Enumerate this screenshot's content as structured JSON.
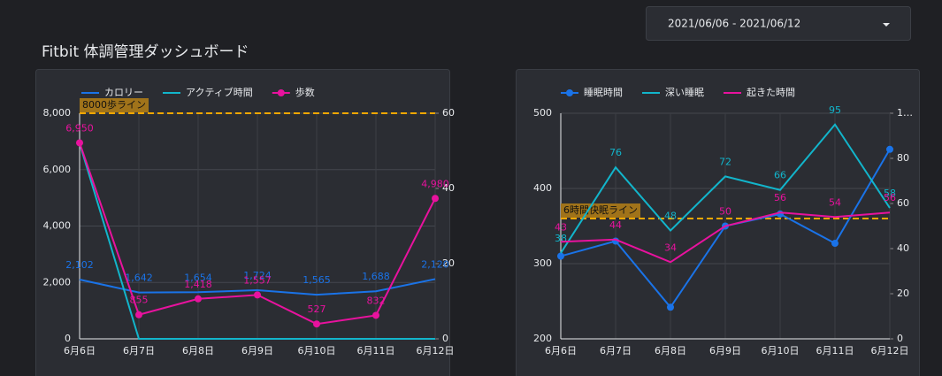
{
  "header": {
    "title": "Fitbit 体調管理ダッシュボード",
    "date_range": "2021/06/06 - 2021/06/12"
  },
  "chart_data": [
    {
      "type": "line",
      "categories": [
        "6月6日",
        "6月7日",
        "6月8日",
        "6月9日",
        "6月10日",
        "6月11日",
        "6月12日"
      ],
      "series": [
        {
          "name": "カロリー",
          "color": "#1a73e8",
          "values": [
            2102,
            1642,
            1654,
            1724,
            1565,
            1688,
            2120
          ],
          "value_labels": [
            "2,102",
            "1,642",
            "1,654",
            "1,724",
            "1,565",
            "1,688",
            "2,120"
          ],
          "show_labels": true
        },
        {
          "name": "アクティブ時間",
          "color": "#12b5cb",
          "axis": "y2",
          "values": [
            52,
            0,
            0,
            0,
            0,
            0,
            0
          ],
          "show_labels": false
        },
        {
          "name": "歩数",
          "color": "#e8129e",
          "marker": true,
          "values": [
            6950,
            855,
            1418,
            1557,
            527,
            832,
            4980
          ],
          "value_labels": [
            "6,950",
            "855",
            "1,418",
            "1,557",
            "527",
            "832",
            "4,980"
          ],
          "show_labels": true
        }
      ],
      "ylim": [
        0,
        8000
      ],
      "yticks": [
        0,
        {
          "value": 2000,
          "label": "2,000"
        },
        {
          "value": 4000,
          "label": "4,000"
        },
        {
          "value": 6000,
          "label": "6,000"
        },
        {
          "value": 8000,
          "label": "8,000"
        }
      ],
      "y2lim": [
        0,
        60
      ],
      "y2ticks": [
        0,
        20,
        40,
        60
      ],
      "reference_line": {
        "value": 8000,
        "label": "8000歩ライン",
        "color": "#f2a700"
      },
      "grid": true,
      "legend": "top"
    },
    {
      "type": "line",
      "categories": [
        "6月6日",
        "6月7日",
        "6月8日",
        "6月9日",
        "6月10日",
        "6月11日",
        "6月12日"
      ],
      "series": [
        {
          "name": "睡眠時間",
          "color": "#1a73e8",
          "marker": true,
          "values": [
            310,
            330,
            242,
            350,
            366,
            327,
            452
          ],
          "show_labels": false
        },
        {
          "name": "深い睡眠",
          "color": "#12b5cb",
          "axis": "y2",
          "values": [
            38,
            76,
            48,
            72,
            66,
            95,
            58
          ],
          "show_labels": true
        },
        {
          "name": "起きた時間",
          "color": "#e8129e",
          "axis": "y2",
          "values": [
            43,
            44,
            34,
            50,
            56,
            54,
            56
          ],
          "show_labels": true
        }
      ],
      "ylim": [
        200,
        500
      ],
      "yticks": [
        200,
        300,
        400,
        500
      ],
      "y2lim": [
        0,
        100
      ],
      "y2ticks": [
        0,
        20,
        40,
        60,
        80,
        {
          "value": 100,
          "label": "1…"
        }
      ],
      "reference_line": {
        "value": 360,
        "label": "6時間快眠ライン",
        "color": "#f2a700"
      },
      "grid": true,
      "legend": "top"
    }
  ]
}
